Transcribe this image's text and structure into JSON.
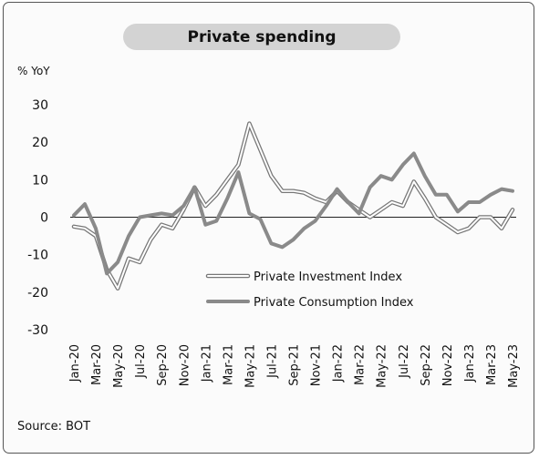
{
  "chart_data": {
    "type": "line",
    "title": "Private spending",
    "ylabel": "% YoY",
    "source": "Source: BOT",
    "ylim": [
      -30,
      30
    ],
    "yticks": [
      30,
      20,
      10,
      0,
      -10,
      -20,
      -30
    ],
    "tick_labels": [
      "Jan-20",
      "Mar-20",
      "May-20",
      "Jul-20",
      "Sep-20",
      "Nov-20",
      "Jan-21",
      "Mar-21",
      "May-21",
      "Jul-21",
      "Sep-21",
      "Nov-21",
      "Jan-22",
      "Mar-22",
      "May-22",
      "Jul-22",
      "Sep-22",
      "Nov-22",
      "Jan-23",
      "Mar-23",
      "May-23"
    ],
    "x": [
      "Jan-20",
      "Feb-20",
      "Mar-20",
      "Apr-20",
      "May-20",
      "Jun-20",
      "Jul-20",
      "Aug-20",
      "Sep-20",
      "Oct-20",
      "Nov-20",
      "Dec-20",
      "Jan-21",
      "Feb-21",
      "Mar-21",
      "Apr-21",
      "May-21",
      "Jun-21",
      "Jul-21",
      "Aug-21",
      "Sep-21",
      "Oct-21",
      "Nov-21",
      "Dec-21",
      "Jan-22",
      "Feb-22",
      "Mar-22",
      "Apr-22",
      "May-22",
      "Jun-22",
      "Jul-22",
      "Aug-22",
      "Sep-22",
      "Oct-22",
      "Nov-22",
      "Dec-22",
      "Jan-23",
      "Feb-23",
      "Mar-23",
      "Apr-23",
      "May-23"
    ],
    "legend_position": "center-right",
    "series": [
      {
        "name": "Private Investment Index",
        "style": "outline",
        "color": "#777777",
        "values": [
          -2.5,
          -3,
          -5,
          -14,
          -19,
          -11,
          -12,
          -6,
          -2,
          -3,
          2,
          8,
          3,
          6,
          10,
          14,
          25,
          18,
          11,
          7,
          7,
          6.5,
          5,
          4,
          7,
          4,
          2,
          0,
          2,
          4,
          3,
          9.5,
          5,
          0,
          -2,
          -4,
          -3,
          0,
          0,
          -3,
          2
        ]
      },
      {
        "name": "Private Consumption Index",
        "style": "solid",
        "color": "#8a8a8a",
        "values": [
          0.5,
          3.5,
          -3,
          -15,
          -12,
          -5,
          0,
          0.5,
          1,
          0.5,
          3,
          8,
          -2,
          -1,
          5,
          12,
          1,
          -0.5,
          -7,
          -8,
          -6,
          -3,
          -1,
          3,
          7.5,
          4,
          1,
          8,
          11,
          10,
          14,
          17,
          11,
          6,
          6,
          1.5,
          4,
          4,
          6,
          7.5,
          7
        ]
      }
    ]
  }
}
